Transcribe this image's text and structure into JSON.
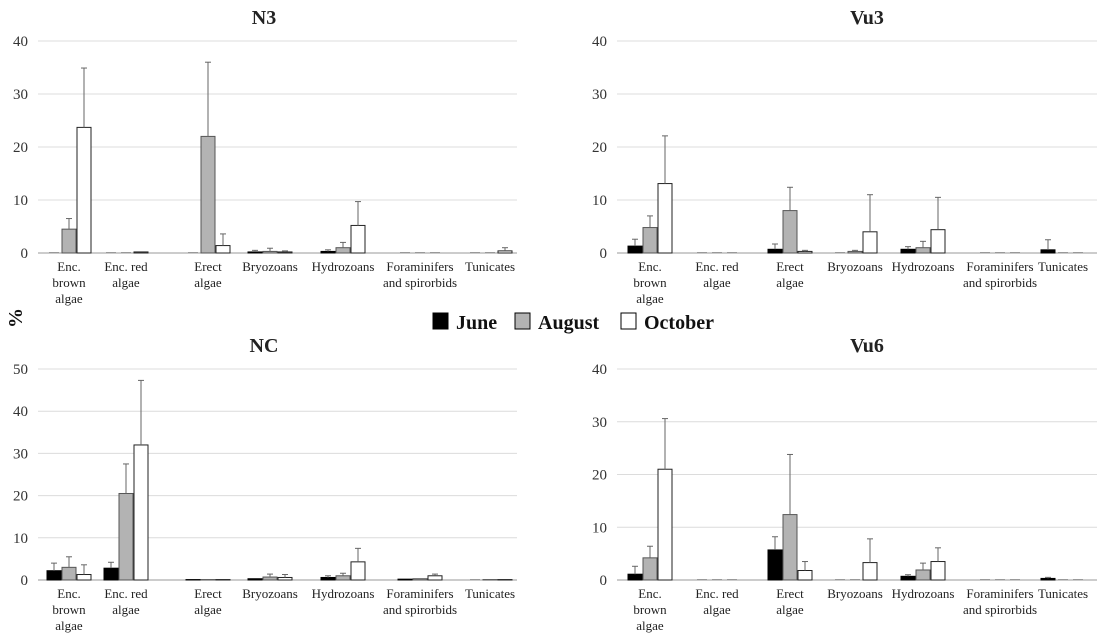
{
  "ylabel": "%",
  "legend": [
    {
      "name": "June",
      "color": "#000000"
    },
    {
      "name": "August",
      "color": "#b3b3b3"
    },
    {
      "name": "October",
      "color": "#ffffff"
    }
  ],
  "chart_data": [
    {
      "type": "bar",
      "title": "N3",
      "categories": [
        [
          "Enc.",
          "brown",
          "algae"
        ],
        [
          "Enc. red",
          "algae"
        ],
        [
          "Erect",
          "algae"
        ],
        [
          "Bryozoans"
        ],
        [
          "Hydrozoans"
        ],
        [
          "Foraminifers",
          "and spirorbids"
        ],
        [
          "Tunicates"
        ]
      ],
      "ylim": [
        0,
        40
      ],
      "yticks": [
        0,
        10,
        20,
        30,
        40
      ],
      "series": [
        {
          "name": "June",
          "values": [
            0,
            0,
            0,
            0.2,
            0.3,
            0,
            0
          ],
          "errors": [
            0,
            0,
            0,
            0.3,
            0.3,
            0,
            0
          ]
        },
        {
          "name": "August",
          "values": [
            4.5,
            0,
            22,
            0.3,
            1,
            0,
            0
          ],
          "errors": [
            2,
            0,
            14,
            0.6,
            1,
            0,
            0
          ]
        },
        {
          "name": "October",
          "values": [
            23.7,
            0.2,
            1.4,
            0.2,
            5.2,
            0,
            0.4
          ],
          "errors": [
            11.2,
            0,
            2.2,
            0.2,
            4.5,
            0,
            0.6
          ]
        }
      ],
      "grid": true
    },
    {
      "type": "bar",
      "title": "Vu3",
      "categories": [
        [
          "Enc.",
          "brown",
          "algae"
        ],
        [
          "Enc. red",
          "algae"
        ],
        [
          "Erect",
          "algae"
        ],
        [
          "Bryozoans"
        ],
        [
          "Hydrozoans"
        ],
        [
          "Foraminifers",
          "and spirorbids"
        ],
        [
          "Tunicates"
        ]
      ],
      "ylim": [
        0,
        40
      ],
      "yticks": [
        0,
        10,
        20,
        30,
        40
      ],
      "series": [
        {
          "name": "June",
          "values": [
            1.3,
            0,
            0.7,
            0,
            0.7,
            0,
            0.6
          ],
          "errors": [
            1.3,
            0,
            1,
            0,
            0.5,
            0,
            1.9
          ]
        },
        {
          "name": "August",
          "values": [
            4.8,
            0,
            8,
            0.3,
            1,
            0,
            0
          ],
          "errors": [
            2.2,
            0,
            4.4,
            0.2,
            1.2,
            0,
            0
          ]
        },
        {
          "name": "October",
          "values": [
            13.1,
            0,
            0.3,
            4,
            4.4,
            0,
            0
          ],
          "errors": [
            9,
            0,
            0.2,
            7,
            6.1,
            0,
            0
          ]
        }
      ],
      "grid": true
    },
    {
      "type": "bar",
      "title": "NC",
      "categories": [
        [
          "Enc.",
          "brown",
          "algae"
        ],
        [
          "Enc. red",
          "algae"
        ],
        [
          "Erect",
          "algae"
        ],
        [
          "Bryozoans"
        ],
        [
          "Hydrozoans"
        ],
        [
          "Foraminifers",
          "and spirorbids"
        ],
        [
          "Tunicates"
        ]
      ],
      "ylim": [
        0,
        50
      ],
      "yticks": [
        0,
        10,
        20,
        30,
        40,
        50
      ],
      "series": [
        {
          "name": "June",
          "values": [
            2.2,
            2.8,
            0.1,
            0.3,
            0.6,
            0.2,
            0
          ],
          "errors": [
            1.8,
            1.4,
            0,
            0,
            0.4,
            0,
            0
          ]
        },
        {
          "name": "August",
          "values": [
            3,
            20.5,
            0.1,
            0.7,
            1,
            0.3,
            0.1
          ],
          "errors": [
            2.5,
            7,
            0,
            0.7,
            0.6,
            0,
            0
          ]
        },
        {
          "name": "October",
          "values": [
            1.3,
            32,
            0.1,
            0.6,
            4.3,
            1,
            0.1
          ],
          "errors": [
            2.3,
            15.3,
            0,
            0.7,
            3.2,
            0.4,
            0
          ]
        }
      ],
      "grid": true
    },
    {
      "type": "bar",
      "title": "Vu6",
      "categories": [
        [
          "Enc.",
          "brown",
          "algae"
        ],
        [
          "Enc. red",
          "algae"
        ],
        [
          "Erect",
          "algae"
        ],
        [
          "Bryozoans"
        ],
        [
          "Hydrozoans"
        ],
        [
          "Foraminifers",
          "and spirorbids"
        ],
        [
          "Tunicates"
        ]
      ],
      "ylim": [
        0,
        40
      ],
      "yticks": [
        0,
        10,
        20,
        30,
        40
      ],
      "series": [
        {
          "name": "June",
          "values": [
            1.1,
            0,
            5.7,
            0,
            0.7,
            0,
            0.3
          ],
          "errors": [
            1.5,
            0,
            2.5,
            0,
            0.3,
            0,
            0.2
          ]
        },
        {
          "name": "August",
          "values": [
            4.2,
            0,
            12.4,
            0,
            1.9,
            0,
            0
          ],
          "errors": [
            2.2,
            0,
            11.4,
            0,
            1.3,
            0,
            0
          ]
        },
        {
          "name": "October",
          "values": [
            21,
            0,
            1.8,
            3.3,
            3.5,
            0,
            0
          ],
          "errors": [
            9.6,
            0,
            1.7,
            4.5,
            2.6,
            0,
            0
          ]
        }
      ],
      "grid": true
    }
  ]
}
